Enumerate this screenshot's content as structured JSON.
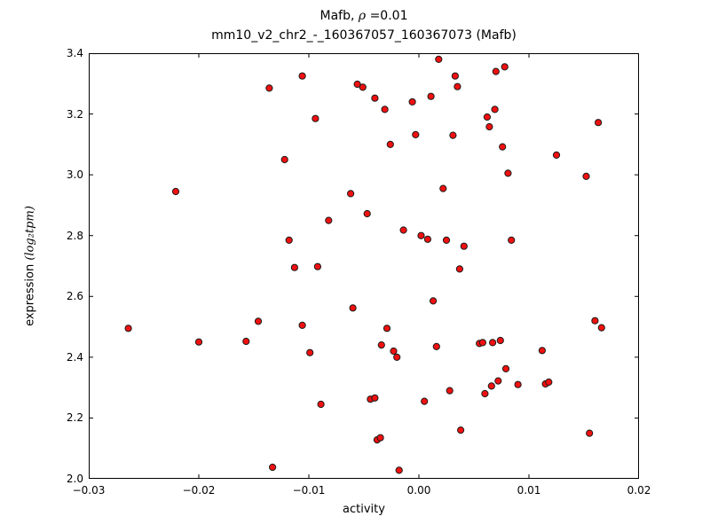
{
  "chart_data": {
    "type": "scatter",
    "title_prefix": "Mafb, ",
    "title_rho": "ρ",
    "title_eq": " =0.01",
    "subtitle": "mm10_v2_chr2_-_160367057_160367073 (Mafb)",
    "xlabel": "activity",
    "ylabel_prefix": "expression ",
    "ylabel_math": "(log₂tpm)",
    "xlim": [
      -0.03,
      0.02
    ],
    "ylim": [
      2.0,
      3.4
    ],
    "x_ticks": [
      -0.03,
      -0.02,
      -0.01,
      0.0,
      0.01,
      0.02
    ],
    "x_tick_labels": [
      "−0.03",
      "−0.02",
      "−0.01",
      "0.00",
      "0.01",
      "0.02"
    ],
    "y_ticks": [
      2.0,
      2.2,
      2.4,
      2.6,
      2.8,
      3.0,
      3.2,
      3.4
    ],
    "y_tick_labels": [
      "2.0",
      "2.2",
      "2.4",
      "2.6",
      "2.8",
      "3.0",
      "3.2",
      "3.4"
    ],
    "grid": false,
    "legend": null,
    "marker": {
      "shape": "circle",
      "color": "#f01010",
      "edge_color": "#1a1a1a",
      "radius_px": 3.6
    },
    "points": [
      [
        -0.0264,
        2.495
      ],
      [
        -0.0221,
        2.945
      ],
      [
        -0.02,
        2.45
      ],
      [
        -0.0157,
        2.452
      ],
      [
        -0.0146,
        2.518
      ],
      [
        -0.0136,
        3.285
      ],
      [
        -0.0133,
        2.038
      ],
      [
        -0.0122,
        3.05
      ],
      [
        -0.0118,
        2.785
      ],
      [
        -0.0113,
        2.695
      ],
      [
        -0.0106,
        3.325
      ],
      [
        -0.0106,
        2.505
      ],
      [
        -0.0099,
        2.415
      ],
      [
        -0.0094,
        3.185
      ],
      [
        -0.0092,
        2.698
      ],
      [
        -0.0089,
        2.245
      ],
      [
        -0.0082,
        2.85
      ],
      [
        -0.0062,
        2.938
      ],
      [
        -0.006,
        2.562
      ],
      [
        -0.0056,
        3.298
      ],
      [
        -0.0051,
        3.288
      ],
      [
        -0.0047,
        2.872
      ],
      [
        -0.0044,
        2.262
      ],
      [
        -0.004,
        2.266
      ],
      [
        -0.004,
        3.252
      ],
      [
        -0.0038,
        2.128
      ],
      [
        -0.0035,
        2.135
      ],
      [
        -0.0034,
        2.44
      ],
      [
        -0.0031,
        3.215
      ],
      [
        -0.0029,
        2.495
      ],
      [
        -0.0026,
        3.1
      ],
      [
        -0.0023,
        2.42
      ],
      [
        -0.002,
        2.4
      ],
      [
        -0.0018,
        2.028
      ],
      [
        -0.0014,
        2.818
      ],
      [
        -0.0006,
        3.24
      ],
      [
        -0.0003,
        3.132
      ],
      [
        0.0002,
        2.8
      ],
      [
        0.0005,
        2.255
      ],
      [
        0.0008,
        2.788
      ],
      [
        0.0011,
        3.258
      ],
      [
        0.0013,
        2.585
      ],
      [
        0.0016,
        2.435
      ],
      [
        0.0018,
        3.38
      ],
      [
        0.0022,
        2.955
      ],
      [
        0.0025,
        2.785
      ],
      [
        0.0028,
        2.29
      ],
      [
        0.0031,
        3.13
      ],
      [
        0.0033,
        3.325
      ],
      [
        0.0035,
        3.29
      ],
      [
        0.0037,
        2.69
      ],
      [
        0.0038,
        2.16
      ],
      [
        0.0041,
        2.765
      ],
      [
        0.0055,
        2.445
      ],
      [
        0.0058,
        2.448
      ],
      [
        0.006,
        2.28
      ],
      [
        0.0062,
        3.19
      ],
      [
        0.0064,
        3.158
      ],
      [
        0.0066,
        2.305
      ],
      [
        0.0067,
        2.448
      ],
      [
        0.0069,
        3.215
      ],
      [
        0.007,
        3.34
      ],
      [
        0.0072,
        2.322
      ],
      [
        0.0074,
        2.455
      ],
      [
        0.0076,
        3.092
      ],
      [
        0.0078,
        3.355
      ],
      [
        0.0079,
        2.362
      ],
      [
        0.0081,
        3.005
      ],
      [
        0.0084,
        2.785
      ],
      [
        0.009,
        2.31
      ],
      [
        0.0112,
        2.422
      ],
      [
        0.0115,
        2.312
      ],
      [
        0.0118,
        2.318
      ],
      [
        0.0125,
        3.065
      ],
      [
        0.0152,
        2.995
      ],
      [
        0.0155,
        2.15
      ],
      [
        0.016,
        2.52
      ],
      [
        0.0163,
        3.172
      ],
      [
        0.0166,
        2.497
      ]
    ]
  }
}
